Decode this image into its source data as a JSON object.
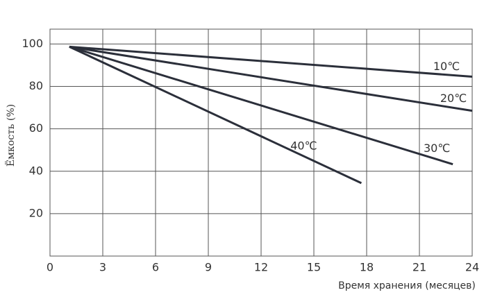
{
  "chart_data": {
    "type": "line",
    "x_label": "Время хранения (месяцев)",
    "y_label": "Ёмкость (%)",
    "series": [
      {
        "name": "10℃",
        "color": "#2b2f3a",
        "x": [
          1.1,
          24
        ],
        "values": [
          98.7,
          84.6
        ]
      },
      {
        "name": "20℃",
        "color": "#2b2f3a",
        "x": [
          1.1,
          24
        ],
        "values": [
          98.7,
          68.5
        ]
      },
      {
        "name": "30℃",
        "color": "#2b2f3a",
        "x": [
          1.1,
          22.9
        ],
        "values": [
          98.7,
          43.3
        ]
      },
      {
        "name": "40℃",
        "color": "#2b2f3a",
        "x": [
          1.1,
          17.7
        ],
        "values": [
          98.7,
          34.4
        ]
      }
    ],
    "xlim": [
      0,
      24
    ],
    "xticks": [
      0,
      3,
      6,
      9,
      12,
      15,
      18,
      21,
      24
    ],
    "ylim": [
      0,
      107
    ],
    "yticks": [
      20,
      40,
      60,
      80,
      100
    ],
    "grid": true
  }
}
